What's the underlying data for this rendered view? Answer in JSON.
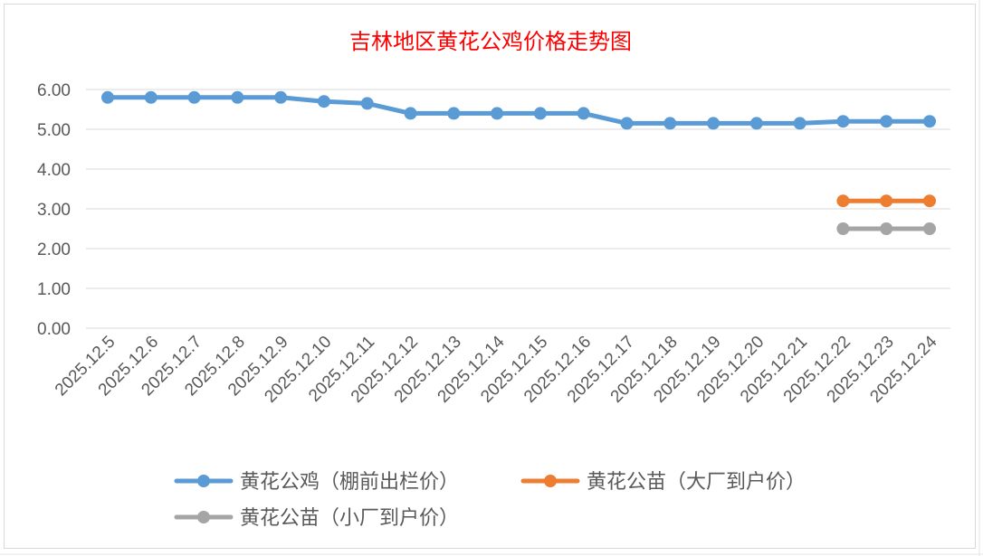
{
  "chart_data": {
    "type": "line",
    "title": "吉林地区黄花公鸡价格走势图",
    "title_color": "#ff0000",
    "categories": [
      "2025.12.5",
      "2025.12.6",
      "2025.12.7",
      "2025.12.8",
      "2025.12.9",
      "2025.12.10",
      "2025.12.11",
      "2025.12.12",
      "2025.12.13",
      "2025.12.14",
      "2025.12.15",
      "2025.12.16",
      "2025.12.17",
      "2025.12.18",
      "2025.12.19",
      "2025.12.20",
      "2025.12.21",
      "2025.12.22",
      "2025.12.23",
      "2025.12.24"
    ],
    "yticks": [
      "0.00",
      "1.00",
      "2.00",
      "3.00",
      "4.00",
      "5.00",
      "6.00"
    ],
    "ylim": [
      0,
      6
    ],
    "grid": true,
    "legend_position": "bottom",
    "series": [
      {
        "name": "黄花公鸡（棚前出栏价）",
        "color": "#5b9bd5",
        "values": [
          5.8,
          5.8,
          5.8,
          5.8,
          5.8,
          5.7,
          5.65,
          5.4,
          5.4,
          5.4,
          5.4,
          5.4,
          5.15,
          5.15,
          5.15,
          5.15,
          5.15,
          5.2,
          5.2,
          5.2
        ]
      },
      {
        "name": "黄花公苗（大厂到户价）",
        "color": "#ed7d31",
        "values": [
          null,
          null,
          null,
          null,
          null,
          null,
          null,
          null,
          null,
          null,
          null,
          null,
          null,
          null,
          null,
          null,
          null,
          3.2,
          3.2,
          3.2
        ]
      },
      {
        "name": "黄花公苗（小厂到户价）",
        "color": "#a5a5a5",
        "values": [
          null,
          null,
          null,
          null,
          null,
          null,
          null,
          null,
          null,
          null,
          null,
          null,
          null,
          null,
          null,
          null,
          null,
          2.5,
          2.5,
          2.5
        ]
      }
    ]
  }
}
